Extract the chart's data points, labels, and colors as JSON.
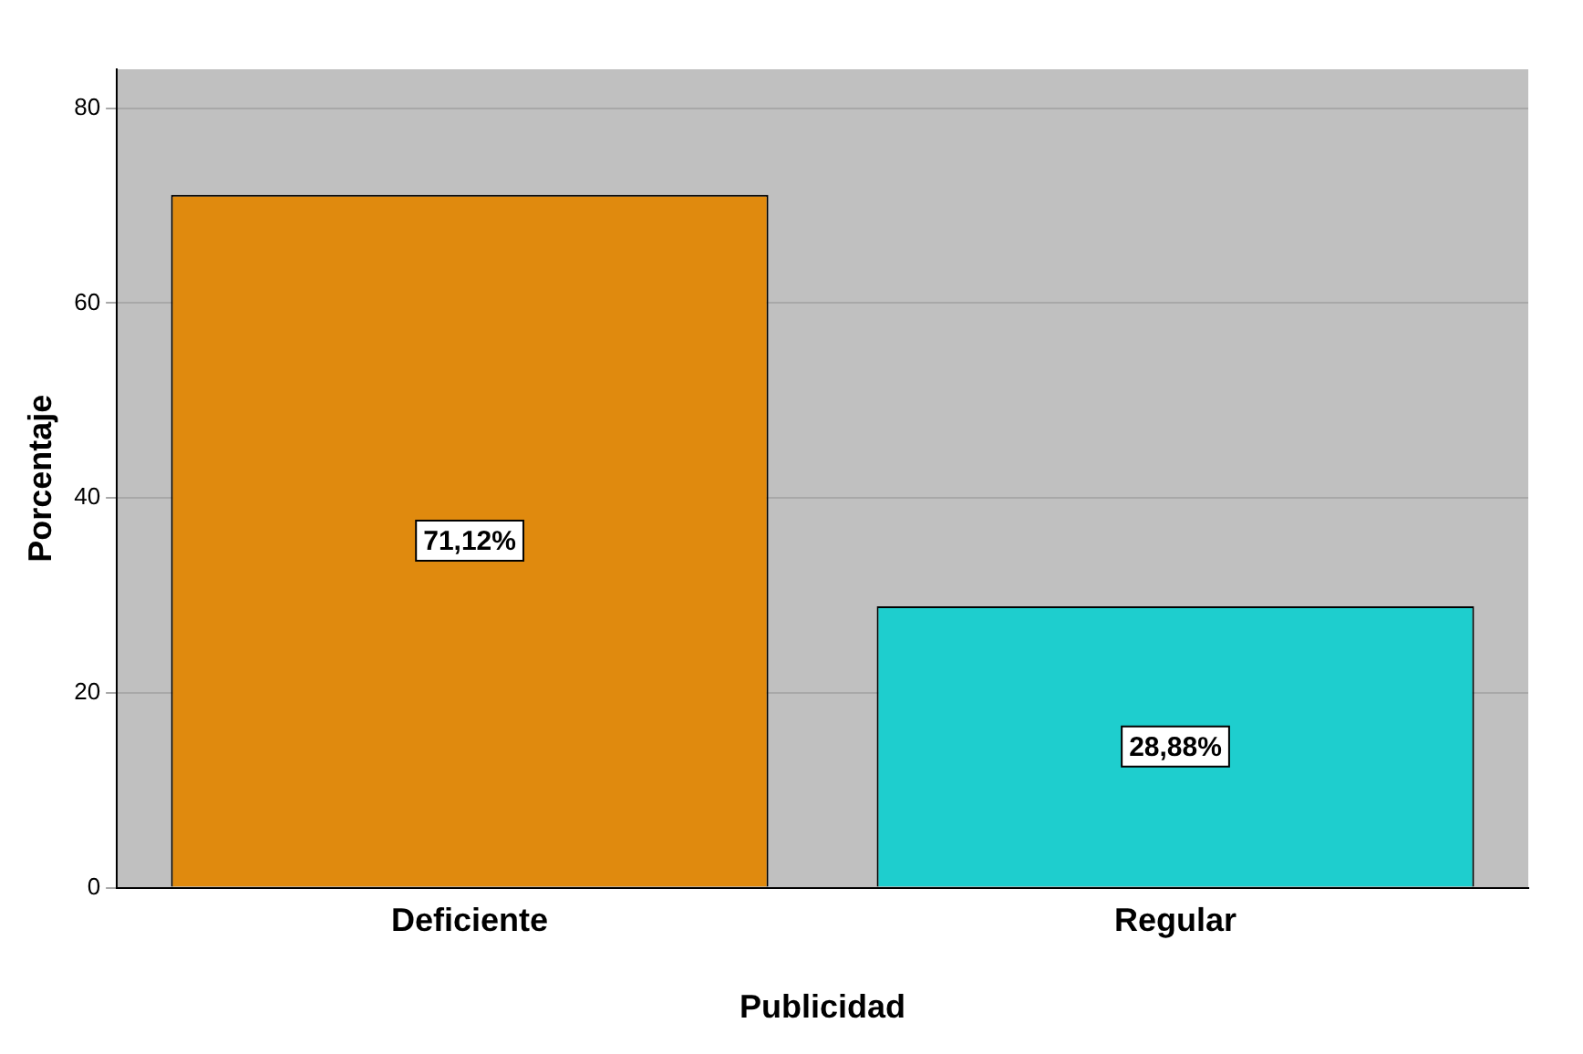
{
  "chart_data": {
    "type": "bar",
    "xlabel": "Publicidad",
    "ylabel": "Porcentaje",
    "categories": [
      "Deficiente",
      "Regular"
    ],
    "values": [
      71.12,
      28.88
    ],
    "colors": [
      "#e08a0e",
      "#1ecece"
    ],
    "value_labels": [
      "71,12%",
      "28,88%"
    ],
    "ylim": [
      0,
      84
    ],
    "yticks": [
      0,
      20,
      40,
      60,
      80
    ],
    "grid": "y"
  }
}
